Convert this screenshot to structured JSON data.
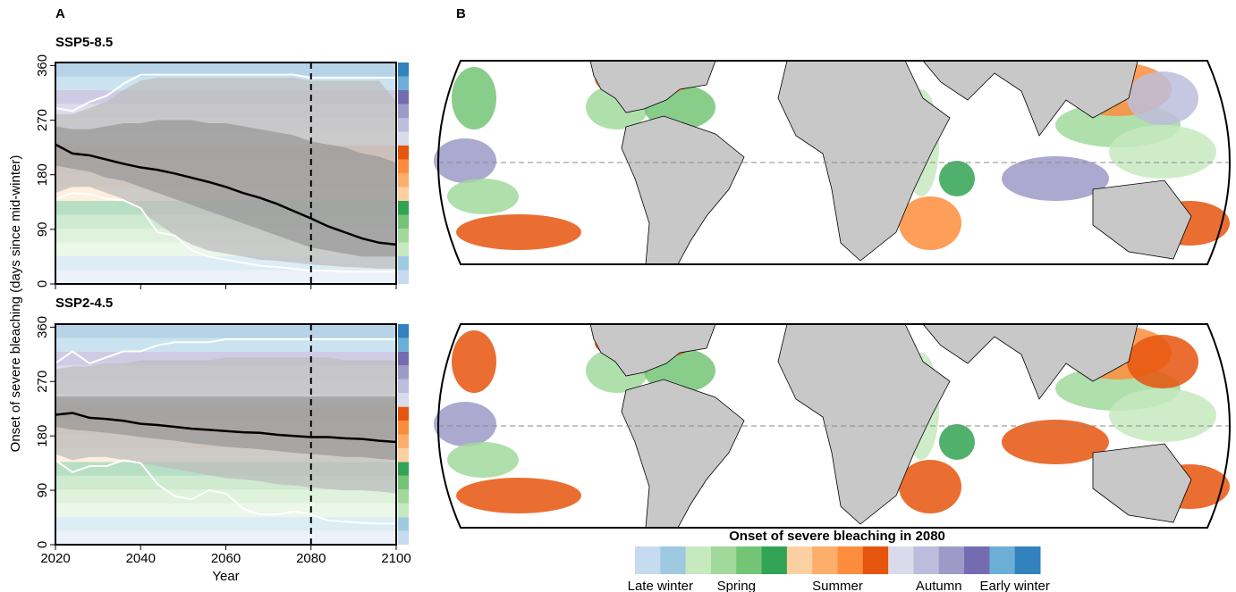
{
  "panel_a_label": "A",
  "panel_b_label": "B",
  "y_label": "Onset of severe bleaching (days since mid-winter)",
  "chart_data": [
    {
      "type": "line",
      "title": "SSP5-8.5",
      "show_xtick_labels": false,
      "x": [
        2020,
        2024,
        2028,
        2032,
        2036,
        2040,
        2044,
        2048,
        2052,
        2056,
        2060,
        2064,
        2068,
        2072,
        2076,
        2080,
        2084,
        2088,
        2092,
        2096,
        2100
      ],
      "xlim": [
        2020,
        2100
      ],
      "xticks": [
        2020,
        2040,
        2060,
        2080,
        2100
      ],
      "ylim": [
        0,
        365
      ],
      "yticks": [
        0,
        90,
        180,
        270,
        360
      ],
      "vline": 2080,
      "bands": [
        {
          "color": "#bdbdbd",
          "low": [
            150,
            160,
            160,
            150,
            140,
            120,
            100,
            80,
            65,
            55,
            50,
            45,
            40,
            38,
            35,
            32,
            30,
            28,
            27,
            25,
            25
          ],
          "high": [
            280,
            280,
            290,
            300,
            320,
            335,
            340,
            340,
            340,
            340,
            340,
            340,
            340,
            340,
            340,
            335,
            335,
            335,
            335,
            335,
            300
          ]
        },
        {
          "color": "#9a9a9a",
          "low": [
            195,
            190,
            185,
            175,
            170,
            160,
            150,
            140,
            130,
            120,
            110,
            100,
            90,
            80,
            70,
            60,
            55,
            50,
            45,
            45,
            45
          ],
          "high": [
            260,
            255,
            255,
            260,
            265,
            265,
            270,
            270,
            270,
            265,
            265,
            260,
            255,
            250,
            245,
            235,
            230,
            225,
            215,
            210,
            200
          ]
        }
      ],
      "series": [
        {
          "color": "#ffffff",
          "values": [
            140,
            150,
            148,
            140,
            138,
            125,
            85,
            80,
            55,
            45,
            40,
            35,
            30,
            28,
            25,
            22,
            22,
            20,
            20,
            20,
            20
          ]
        },
        {
          "color": "#ffffff",
          "values": [
            290,
            285,
            300,
            310,
            330,
            345,
            345,
            345,
            345,
            345,
            345,
            345,
            345,
            345,
            345,
            340,
            340,
            340,
            340,
            340,
            340
          ]
        },
        {
          "color": "#000000",
          "values": [
            230,
            215,
            212,
            205,
            198,
            192,
            188,
            182,
            175,
            168,
            160,
            150,
            142,
            132,
            120,
            108,
            95,
            85,
            75,
            68,
            65
          ]
        }
      ]
    },
    {
      "type": "line",
      "title": "SSP2-4.5",
      "show_xtick_labels": true,
      "x_label": "Year",
      "x": [
        2020,
        2024,
        2028,
        2032,
        2036,
        2040,
        2044,
        2048,
        2052,
        2056,
        2060,
        2064,
        2068,
        2072,
        2076,
        2080,
        2084,
        2088,
        2092,
        2096,
        2100
      ],
      "xlim": [
        2020,
        2100
      ],
      "xticks": [
        2020,
        2040,
        2060,
        2080,
        2100
      ],
      "ylim": [
        0,
        365
      ],
      "yticks": [
        0,
        90,
        180,
        270,
        360
      ],
      "vline": 2080,
      "bands": [
        {
          "color": "#bdbdbd",
          "low": [
            150,
            140,
            145,
            145,
            140,
            135,
            130,
            125,
            120,
            115,
            110,
            108,
            105,
            100,
            98,
            95,
            92,
            90,
            90,
            88,
            85
          ],
          "high": [
            290,
            295,
            295,
            300,
            300,
            305,
            305,
            305,
            305,
            305,
            310,
            310,
            310,
            310,
            310,
            310,
            310,
            305,
            305,
            305,
            305
          ]
        },
        {
          "color": "#9a9a9a",
          "low": [
            195,
            190,
            188,
            185,
            182,
            178,
            175,
            172,
            168,
            165,
            162,
            160,
            158,
            155,
            152,
            150,
            148,
            145,
            145,
            142,
            140
          ],
          "high": [
            245,
            245,
            245,
            245,
            245,
            245,
            245,
            245,
            245,
            245,
            245,
            245,
            245,
            245,
            245,
            245,
            245,
            245,
            245,
            245,
            245
          ]
        }
      ],
      "series": [
        {
          "color": "#ffffff",
          "values": [
            140,
            120,
            130,
            130,
            140,
            135,
            100,
            80,
            75,
            90,
            85,
            60,
            50,
            50,
            55,
            50,
            40,
            38,
            36,
            35,
            35
          ]
        },
        {
          "color": "#ffffff",
          "values": [
            300,
            320,
            300,
            310,
            320,
            320,
            330,
            335,
            335,
            335,
            340,
            340,
            340,
            340,
            340,
            340,
            340,
            340,
            340,
            340,
            340
          ]
        },
        {
          "color": "#000000",
          "values": [
            215,
            218,
            210,
            208,
            205,
            200,
            198,
            195,
            192,
            190,
            188,
            186,
            185,
            182,
            180,
            178,
            178,
            176,
            175,
            172,
            170
          ]
        }
      ]
    }
  ],
  "colorbar": {
    "title": "Onset of severe bleaching in 2080",
    "colors": [
      "#c6dbef",
      "#9ecae1",
      "#c7e9c0",
      "#a1d99b",
      "#74c476",
      "#31a354",
      "#fdd0a2",
      "#fdae6b",
      "#fd8d3c",
      "#e6550d",
      "#dadaeb",
      "#bcbddc",
      "#9e9ac8",
      "#756bb1",
      "#6baed6",
      "#3182bd"
    ],
    "labels": [
      "Late winter",
      "Spring",
      "Summer",
      "Autumn",
      "Early winter"
    ]
  }
}
